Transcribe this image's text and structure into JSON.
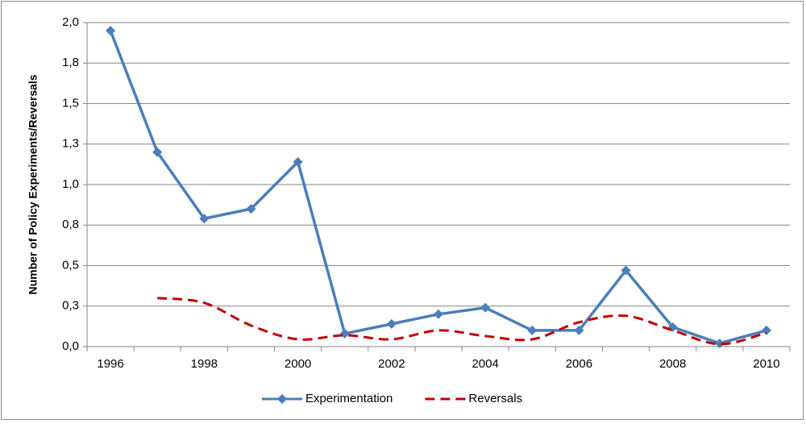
{
  "chart_data": {
    "type": "line",
    "y_label": "Number of Policy Experiments/Reversals",
    "categories": [
      "1996",
      null,
      "1998",
      null,
      "2000",
      null,
      "2002",
      null,
      "2004",
      null,
      "2006",
      null,
      "2008",
      null,
      "2010"
    ],
    "series": [
      {
        "name": "Experimentation",
        "color": "#4a7ebb",
        "line_style": "solid",
        "marker": "diamond",
        "smooth": false,
        "values": [
          1.95,
          1.2,
          0.79,
          0.85,
          1.14,
          0.08,
          0.14,
          0.2,
          0.24,
          0.1,
          0.1,
          0.47,
          0.12,
          0.02,
          0.1
        ]
      },
      {
        "name": "Reversals",
        "color": "#c00000",
        "line_style": "dashed",
        "marker": "none",
        "smooth": true,
        "values": [
          null,
          0.3,
          0.27,
          0.13,
          0.045,
          0.07,
          0.045,
          0.1,
          0.065,
          0.045,
          0.15,
          0.19,
          0.1,
          0.015,
          0.085
        ]
      }
    ],
    "ylim": [
      0,
      2.0
    ],
    "yticks": [
      {
        "value": 0,
        "label": "0,0"
      },
      {
        "value": 0.25,
        "label": "0,3"
      },
      {
        "value": 0.5,
        "label": "0,5"
      },
      {
        "value": 0.75,
        "label": "0,8"
      },
      {
        "value": 1.0,
        "label": "1,0"
      },
      {
        "value": 1.25,
        "label": "1,3"
      },
      {
        "value": 1.5,
        "label": "1,5"
      },
      {
        "value": 1.75,
        "label": "1,8"
      },
      {
        "value": 2.0,
        "label": "2,0"
      }
    ],
    "grid": true,
    "legend": "bottom"
  }
}
